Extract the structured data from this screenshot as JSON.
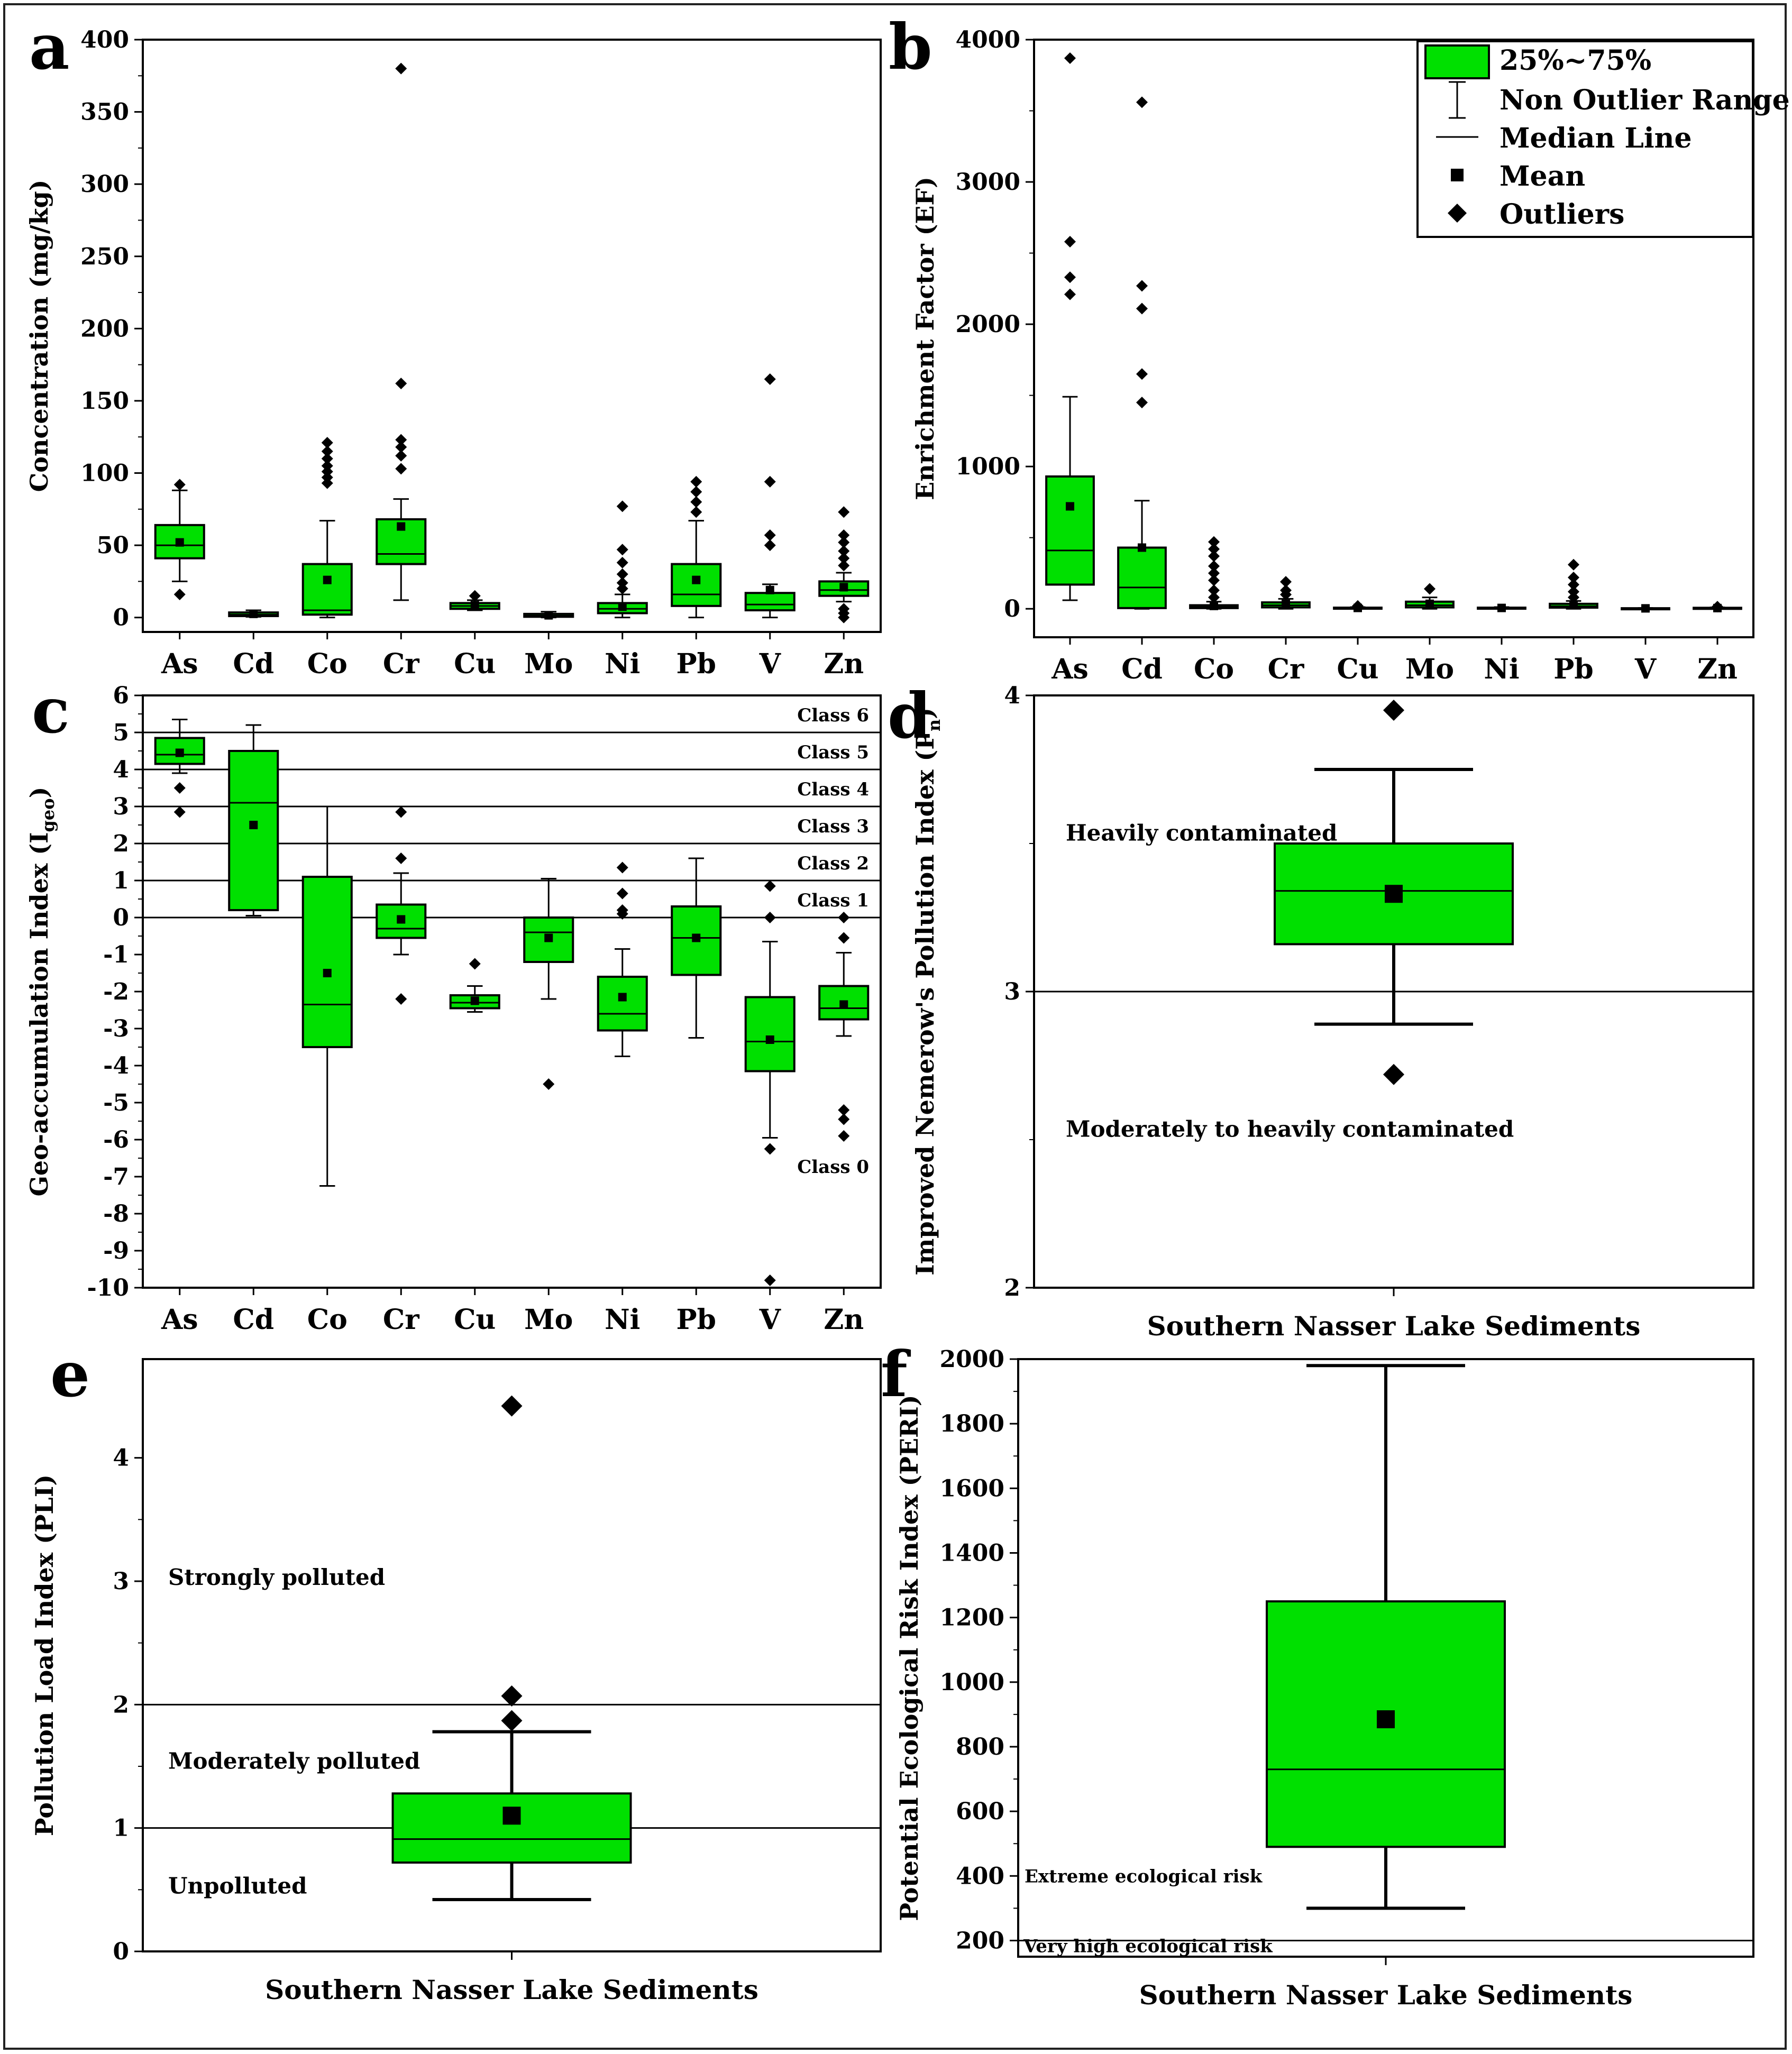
{
  "chart_data": [
    {
      "id": "a",
      "type": "box",
      "panel_label": "a",
      "ylabel": "Concentration (mg/kg)",
      "ylim": [
        -10,
        400
      ],
      "yticks": [
        0,
        50,
        100,
        150,
        200,
        250,
        300,
        350,
        400
      ],
      "categories": [
        "As",
        "Cd",
        "Co",
        "Cr",
        "Cu",
        "Mo",
        "Ni",
        "Pb",
        "V",
        "Zn"
      ],
      "boxes": [
        {
          "q1": 41,
          "median": 50,
          "q3": 64,
          "wlo": 25,
          "whi": 88,
          "mean": 52,
          "outliers": [
            16,
            92
          ]
        },
        {
          "q1": 1,
          "median": 2,
          "q3": 3.5,
          "wlo": 0.5,
          "whi": 5,
          "mean": 2.5,
          "outliers": []
        },
        {
          "q1": 2,
          "median": 5,
          "q3": 37,
          "wlo": 0,
          "whi": 67,
          "mean": 26,
          "outliers": [
            93,
            97,
            101,
            105,
            110,
            115,
            121
          ]
        },
        {
          "q1": 37,
          "median": 44,
          "q3": 68,
          "wlo": 12,
          "whi": 82,
          "mean": 63,
          "outliers": [
            103,
            112,
            118,
            123,
            162,
            380
          ]
        },
        {
          "q1": 6,
          "median": 8,
          "q3": 10,
          "wlo": 5,
          "whi": 12,
          "mean": 8.5,
          "outliers": [
            15
          ]
        },
        {
          "q1": 0.5,
          "median": 1.2,
          "q3": 2.5,
          "wlo": 0,
          "whi": 4,
          "mean": 1.5,
          "outliers": []
        },
        {
          "q1": 3,
          "median": 6,
          "q3": 10,
          "wlo": 0,
          "whi": 16,
          "mean": 7.5,
          "outliers": [
            20,
            24,
            30,
            38,
            47,
            77
          ]
        },
        {
          "q1": 8,
          "median": 16,
          "q3": 37,
          "wlo": 0,
          "whi": 67,
          "mean": 26,
          "outliers": [
            73,
            80,
            87,
            94
          ]
        },
        {
          "q1": 5,
          "median": 9,
          "q3": 17,
          "wlo": 0,
          "whi": 23,
          "mean": 19,
          "outliers": [
            50,
            57,
            94,
            165
          ]
        },
        {
          "q1": 15,
          "median": 19,
          "q3": 25,
          "wlo": 11,
          "whi": 31,
          "mean": 21,
          "outliers": [
            0,
            3,
            6,
            36,
            41,
            46,
            52,
            57,
            73
          ]
        }
      ]
    },
    {
      "id": "b",
      "type": "box",
      "panel_label": "b",
      "ylabel": "Enrichment Factor (EF)",
      "ylim": [
        -200,
        4000
      ],
      "yticks": [
        0,
        1000,
        2000,
        3000,
        4000
      ],
      "categories": [
        "As",
        "Cd",
        "Co",
        "Cr",
        "Cu",
        "Mo",
        "Ni",
        "Pb",
        "V",
        "Zn"
      ],
      "boxes": [
        {
          "q1": 170,
          "median": 410,
          "q3": 930,
          "wlo": 60,
          "whi": 1490,
          "mean": 720,
          "outliers": [
            2210,
            2330,
            2580,
            3870
          ]
        },
        {
          "q1": 5,
          "median": 150,
          "q3": 430,
          "wlo": 0,
          "whi": 760,
          "mean": 430,
          "outliers": [
            1450,
            1650,
            2110,
            2270,
            3560
          ]
        },
        {
          "q1": 5,
          "median": 12,
          "q3": 25,
          "wlo": 0,
          "whi": 50,
          "mean": 20,
          "outliers": [
            80,
            130,
            200,
            250,
            300,
            370,
            420,
            470
          ]
        },
        {
          "q1": 10,
          "median": 25,
          "q3": 45,
          "wlo": 0,
          "whi": 70,
          "mean": 35,
          "outliers": [
            100,
            130,
            190
          ]
        },
        {
          "q1": 2,
          "median": 5,
          "q3": 8,
          "wlo": 0,
          "whi": 12,
          "mean": 6,
          "outliers": [
            20
          ]
        },
        {
          "q1": 10,
          "median": 25,
          "q3": 50,
          "wlo": 0,
          "whi": 80,
          "mean": 35,
          "outliers": [
            140
          ]
        },
        {
          "q1": 2,
          "median": 4,
          "q3": 8,
          "wlo": 0,
          "whi": 12,
          "mean": 6,
          "outliers": []
        },
        {
          "q1": 8,
          "median": 18,
          "q3": 35,
          "wlo": 0,
          "whi": 55,
          "mean": 25,
          "outliers": [
            80,
            120,
            170,
            220,
            310
          ]
        },
        {
          "q1": 1,
          "median": 2,
          "q3": 4,
          "wlo": 0,
          "whi": 6,
          "mean": 3,
          "outliers": []
        },
        {
          "q1": 2,
          "median": 4,
          "q3": 7,
          "wlo": 0,
          "whi": 10,
          "mean": 5,
          "outliers": [
            15
          ]
        }
      ],
      "legend": {
        "items": [
          "25%~75%",
          "Non Outlier Range",
          "Median Line",
          "Mean",
          "Outliers"
        ],
        "position": "top-right"
      }
    },
    {
      "id": "c",
      "type": "box",
      "panel_label": "c",
      "ylabel_main": "Geo-accumulation Index (I",
      "ylabel_sub": "geo",
      "ylabel_close": ")",
      "ylim": [
        -10,
        6
      ],
      "yticks": [
        -10,
        -9,
        -8,
        -7,
        -6,
        -5,
        -4,
        -3,
        -2,
        -1,
        0,
        1,
        2,
        3,
        4,
        5,
        6
      ],
      "reference_lines": [
        0,
        1,
        2,
        3,
        4,
        5
      ],
      "zones": [
        "Class 6",
        "Class 5",
        "Class 4",
        "Class 3",
        "Class 2",
        "Class 1",
        "Class 0"
      ],
      "categories": [
        "As",
        "Cd",
        "Co",
        "Cr",
        "Cu",
        "Mo",
        "Ni",
        "Pb",
        "V",
        "Zn"
      ],
      "boxes": [
        {
          "q1": 4.15,
          "median": 4.4,
          "q3": 4.85,
          "wlo": 3.9,
          "whi": 5.35,
          "mean": 4.45,
          "outliers": [
            2.85,
            3.5
          ]
        },
        {
          "q1": 0.2,
          "median": 3.1,
          "q3": 4.5,
          "wlo": 0.05,
          "whi": 5.2,
          "mean": 2.5,
          "outliers": []
        },
        {
          "q1": -3.5,
          "median": -2.35,
          "q3": 1.1,
          "wlo": -7.25,
          "whi": 3.0,
          "mean": -1.5,
          "outliers": []
        },
        {
          "q1": -0.55,
          "median": -0.3,
          "q3": 0.35,
          "wlo": -1.0,
          "whi": 1.2,
          "mean": -0.05,
          "outliers": [
            -2.2,
            1.6,
            2.85
          ]
        },
        {
          "q1": -2.45,
          "median": -2.3,
          "q3": -2.1,
          "wlo": -2.55,
          "whi": -1.85,
          "mean": -2.25,
          "outliers": [
            -1.25
          ]
        },
        {
          "q1": -1.2,
          "median": -0.4,
          "q3": 0.0,
          "wlo": -2.2,
          "whi": 1.05,
          "mean": -0.55,
          "outliers": [
            -4.5
          ]
        },
        {
          "q1": -3.05,
          "median": -2.6,
          "q3": -1.6,
          "wlo": -3.75,
          "whi": -0.85,
          "mean": -2.15,
          "outliers": [
            0.1,
            0.2,
            0.65,
            1.35
          ]
        },
        {
          "q1": -1.55,
          "median": -0.55,
          "q3": 0.3,
          "wlo": -3.25,
          "whi": 1.6,
          "mean": -0.55,
          "outliers": []
        },
        {
          "q1": -4.15,
          "median": -3.35,
          "q3": -2.15,
          "wlo": -5.95,
          "whi": -0.65,
          "mean": -3.3,
          "outliers": [
            -9.8,
            -6.25,
            0.0,
            0.85
          ]
        },
        {
          "q1": -2.75,
          "median": -2.45,
          "q3": -1.85,
          "wlo": -3.2,
          "whi": -0.95,
          "mean": -2.35,
          "outliers": [
            -5.9,
            -5.45,
            -5.2,
            -0.55,
            0.0
          ]
        }
      ]
    },
    {
      "id": "d",
      "type": "box",
      "panel_label": "d",
      "ylabel_main": "Improved Nemerow's Pollution Index (P",
      "ylabel_sub": "n",
      "ylabel_close": ")",
      "ylim": [
        2,
        4
      ],
      "yticks": [
        2,
        3,
        4
      ],
      "reference_lines": [
        3
      ],
      "zones": [
        "Heavily contaminated",
        "Moderately to heavily contaminated"
      ],
      "xlabel": "Southern Nasser Lake Sediments",
      "boxes": [
        {
          "q1": 3.16,
          "median": 3.34,
          "q3": 3.5,
          "wlo": 2.89,
          "whi": 3.75,
          "mean": 3.33,
          "outliers": [
            2.72,
            3.95
          ]
        }
      ]
    },
    {
      "id": "e",
      "type": "box",
      "panel_label": "e",
      "ylabel": "Pollution Load Index (PLI)",
      "ylim": [
        0,
        4.8
      ],
      "yticks": [
        0,
        1,
        2,
        3,
        4
      ],
      "reference_lines": [
        1,
        2
      ],
      "zones": [
        "Strongly polluted",
        "Moderately polluted",
        "Unpolluted"
      ],
      "xlabel": "Southern Nasser Lake Sediments",
      "boxes": [
        {
          "q1": 0.72,
          "median": 0.91,
          "q3": 1.28,
          "wlo": 0.42,
          "whi": 1.78,
          "mean": 1.1,
          "outliers": [
            1.87,
            2.07,
            4.42
          ]
        }
      ]
    },
    {
      "id": "f",
      "type": "box",
      "panel_label": "f",
      "ylabel": "Potential Ecological Risk Index (PERI)",
      "ylim": [
        150,
        2000
      ],
      "yticks": [
        200,
        400,
        600,
        800,
        1000,
        1200,
        1400,
        1600,
        1800,
        2000
      ],
      "reference_lines": [
        200
      ],
      "zones": [
        "Extreme ecological risk",
        "Very high ecological risk"
      ],
      "xlabel": "Southern Nasser Lake Sediments",
      "boxes": [
        {
          "q1": 490,
          "median": 730,
          "q3": 1250,
          "wlo": 300,
          "whi": 1980,
          "mean": 885,
          "outliers": []
        }
      ]
    }
  ],
  "colors": {
    "box_fill": "#00e000",
    "line": "#000000"
  }
}
